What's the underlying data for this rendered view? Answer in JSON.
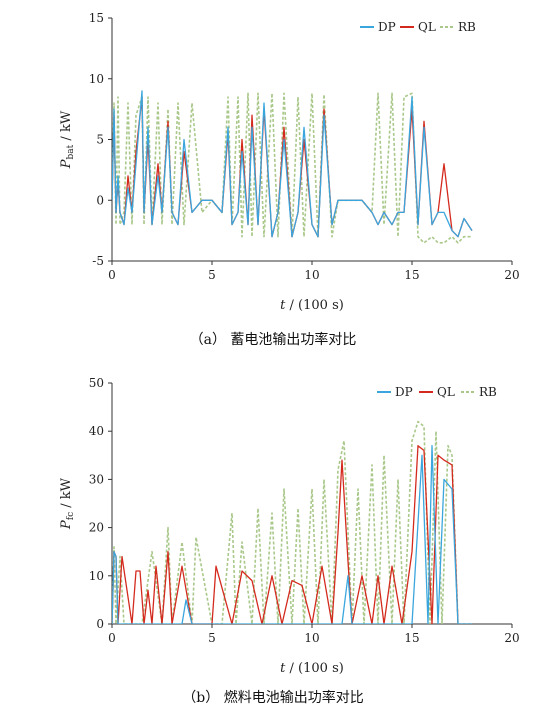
{
  "colors": {
    "DP": "#3aa6dd",
    "QL": "#d42a1e",
    "RB": "#a9c88a"
  },
  "chart_data": [
    {
      "type": "line",
      "caption": "（a） 蓄电池输出功率对比",
      "ylabel_main": "P",
      "ylabel_sub": "bat",
      "ylabel_unit": " / kW",
      "xlabel_main": "t",
      "xlabel_unit": " / (100 s)",
      "xlim": [
        0,
        20
      ],
      "ylim": [
        -5,
        15
      ],
      "xticks": [
        "0",
        "5",
        "10",
        "15",
        "20"
      ],
      "yticks": [
        "-5",
        "0",
        "5",
        "10",
        "15"
      ],
      "legend_position": "top-right",
      "series": [
        {
          "name": "DP",
          "style": "solid",
          "x": [
            0.0,
            0.1,
            0.2,
            0.3,
            0.4,
            0.6,
            0.8,
            1.0,
            1.2,
            1.5,
            1.6,
            1.8,
            2.0,
            2.3,
            2.5,
            2.8,
            3.0,
            3.3,
            3.6,
            4.0,
            4.5,
            5.0,
            5.5,
            5.8,
            6.0,
            6.3,
            6.5,
            6.8,
            7.0,
            7.3,
            7.6,
            8.0,
            8.3,
            8.6,
            9.0,
            9.3,
            9.6,
            10.0,
            10.3,
            10.6,
            11.0,
            11.3,
            11.6,
            12.0,
            12.5,
            13.0,
            13.3,
            13.6,
            14.0,
            14.3,
            14.6,
            15.0,
            15.3,
            15.6,
            16.0,
            16.3,
            16.6,
            17.0,
            17.3,
            17.6,
            18.0
          ],
          "y": [
            0,
            7.5,
            -1,
            2,
            -1,
            -2,
            1,
            -1,
            3,
            9,
            -1,
            6,
            -2,
            2,
            -1,
            6,
            -1,
            -2,
            5,
            -1,
            0,
            0,
            -1,
            6,
            -2,
            -1,
            4,
            -2,
            6,
            -2,
            8,
            -3,
            -1,
            5,
            -3,
            -1,
            6,
            -2,
            -3,
            7,
            -2,
            0,
            0,
            0,
            0,
            -1,
            -2,
            -1,
            -2,
            -1,
            -1,
            8.5,
            -2,
            6,
            -2,
            -1,
            -1,
            -2.5,
            -3,
            -1.5,
            -2.5
          ]
        },
        {
          "name": "QL",
          "style": "solid",
          "x": [
            0.0,
            0.1,
            0.2,
            0.3,
            0.4,
            0.6,
            0.8,
            1.0,
            1.2,
            1.5,
            1.6,
            1.8,
            2.0,
            2.3,
            2.5,
            2.8,
            3.0,
            3.3,
            3.6,
            4.0,
            4.5,
            5.0,
            5.5,
            5.8,
            6.0,
            6.3,
            6.5,
            6.8,
            7.0,
            7.3,
            7.6,
            8.0,
            8.3,
            8.6,
            9.0,
            9.3,
            9.6,
            10.0,
            10.3,
            10.6,
            11.0,
            11.3,
            11.6,
            12.0,
            12.5,
            13.0,
            13.3,
            13.6,
            14.0,
            14.3,
            14.6,
            15.0,
            15.3,
            15.6,
            16.0,
            16.3,
            16.6,
            17.0,
            17.3,
            17.6,
            18.0
          ],
          "y": [
            0,
            7,
            -1,
            1.5,
            -1,
            -2,
            2,
            -1,
            4,
            8.5,
            -1,
            5,
            -2,
            3,
            -1,
            6.5,
            -1,
            -2,
            4,
            -1,
            0,
            0,
            -1,
            5.5,
            -2,
            -1,
            5,
            -2,
            7,
            -2,
            7.5,
            -3,
            -1,
            6,
            -3,
            -1,
            5,
            -2,
            -3,
            7.5,
            -2,
            0,
            0,
            0,
            0,
            -1,
            -2,
            -1,
            -2,
            -1,
            -1,
            7.5,
            -2,
            6.5,
            -2,
            -1,
            3,
            -2.5,
            -3,
            -1.5,
            -2.5
          ]
        },
        {
          "name": "RB",
          "style": "dashed",
          "x": [
            0.0,
            0.1,
            0.2,
            0.3,
            0.4,
            0.6,
            0.8,
            1.0,
            1.2,
            1.5,
            1.6,
            1.8,
            2.0,
            2.3,
            2.5,
            2.8,
            3.0,
            3.3,
            3.6,
            4.0,
            4.5,
            5.0,
            5.5,
            5.8,
            6.0,
            6.3,
            6.5,
            6.8,
            7.0,
            7.3,
            7.6,
            8.0,
            8.3,
            8.6,
            9.0,
            9.3,
            9.6,
            10.0,
            10.3,
            10.6,
            11.0,
            11.3,
            11.6,
            12.0,
            12.5,
            13.0,
            13.3,
            13.6,
            14.0,
            14.3,
            14.6,
            15.0,
            15.3,
            15.6,
            16.0,
            16.3,
            16.6,
            17.0,
            17.3,
            17.6,
            18.0
          ],
          "y": [
            0,
            8,
            -2,
            8.5,
            -2,
            -1,
            8,
            -2,
            7,
            8.5,
            -2,
            8.5,
            -2,
            8,
            -2,
            7.5,
            -2,
            8,
            -2,
            8,
            -1,
            0,
            -1,
            8.5,
            -2,
            8.5,
            -3,
            8.8,
            -3,
            8.8,
            -3,
            8.8,
            -3,
            8.8,
            -3,
            8.5,
            -3,
            8.8,
            -3,
            8.7,
            -3,
            0,
            0,
            0,
            0,
            -1,
            8.8,
            -2,
            8.8,
            -3,
            8.5,
            8.8,
            -3,
            -3.5,
            -3,
            -3.5,
            -3.5,
            -3,
            -3.5,
            -3,
            -3
          ]
        }
      ]
    },
    {
      "type": "line",
      "caption": "（b） 燃料电池输出功率对比",
      "ylabel_main": "P",
      "ylabel_sub": "fc",
      "ylabel_unit": " / kW",
      "xlabel_main": "t",
      "xlabel_unit": " / (100 s)",
      "xlim": [
        0,
        20
      ],
      "ylim": [
        0,
        50
      ],
      "xticks": [
        "0",
        "5",
        "10",
        "15",
        "20"
      ],
      "yticks": [
        "0",
        "10",
        "20",
        "30",
        "40",
        "50"
      ],
      "legend_position": "top-right",
      "series": [
        {
          "name": "DP",
          "style": "solid",
          "x": [
            0.0,
            0.1,
            0.2,
            0.3,
            0.5,
            1.0,
            1.5,
            2.0,
            2.5,
            3.0,
            3.5,
            3.7,
            4.0,
            5.0,
            6.0,
            6.5,
            7.0,
            7.5,
            8.0,
            8.5,
            9.0,
            9.5,
            10.0,
            10.5,
            11.0,
            11.5,
            11.8,
            12.0,
            12.5,
            13.0,
            13.5,
            14.0,
            14.5,
            15.0,
            15.5,
            15.8,
            16.0,
            16.3,
            16.6,
            17.0,
            17.3,
            17.6,
            18.0
          ],
          "y": [
            0,
            15,
            14,
            0,
            0,
            0,
            0,
            0,
            0,
            0,
            0,
            5,
            0,
            0,
            0,
            0,
            0,
            0,
            0,
            0,
            0,
            0,
            0,
            0,
            0,
            0,
            10,
            0,
            0,
            0,
            0,
            0,
            0,
            0,
            35,
            0,
            37,
            0,
            30,
            28,
            0,
            0,
            0
          ]
        },
        {
          "name": "QL",
          "style": "solid",
          "x": [
            0.0,
            0.1,
            0.2,
            0.3,
            0.5,
            1.0,
            1.2,
            1.4,
            1.6,
            1.8,
            2.0,
            2.2,
            2.5,
            2.8,
            3.0,
            3.5,
            4.0,
            5.0,
            5.2,
            6.0,
            6.5,
            7.0,
            7.5,
            8.0,
            8.5,
            9.0,
            9.5,
            10.0,
            10.5,
            11.0,
            11.3,
            11.5,
            11.8,
            12.0,
            12.5,
            13.0,
            13.3,
            13.6,
            14.0,
            14.5,
            15.0,
            15.3,
            15.6,
            16.0,
            16.3,
            16.6,
            17.0,
            17.3,
            17.6,
            18.0
          ],
          "y": [
            0,
            15,
            14,
            0,
            14,
            0,
            11,
            11,
            0,
            7,
            0,
            12,
            0,
            15,
            0,
            12,
            0,
            0,
            12,
            0,
            11,
            9,
            0,
            10,
            0,
            9,
            8,
            0,
            12,
            0,
            19,
            34,
            13,
            0,
            10,
            0,
            10,
            0,
            12,
            0,
            15,
            37,
            36,
            0,
            35,
            34,
            33,
            0,
            0,
            0
          ]
        },
        {
          "name": "RB",
          "style": "dashed",
          "x": [
            0.0,
            0.1,
            0.2,
            0.4,
            0.6,
            1.0,
            1.5,
            2.0,
            2.5,
            2.8,
            3.0,
            3.5,
            4.0,
            4.2,
            5.0,
            5.5,
            6.0,
            6.2,
            6.5,
            7.0,
            7.3,
            7.6,
            8.0,
            8.3,
            8.6,
            9.0,
            9.3,
            9.6,
            10.0,
            10.3,
            10.6,
            11.0,
            11.3,
            11.6,
            12.0,
            12.3,
            12.6,
            13.0,
            13.3,
            13.6,
            14.0,
            14.3,
            14.6,
            15.0,
            15.3,
            15.6,
            15.9,
            16.2,
            16.5,
            16.8,
            17.0,
            17.3,
            17.6,
            18.0
          ],
          "y": [
            0,
            16,
            0,
            14,
            0,
            0,
            0,
            15,
            0,
            20,
            0,
            17,
            0,
            18,
            0,
            0,
            23,
            0,
            17,
            0,
            24,
            0,
            23,
            0,
            28,
            0,
            24,
            0,
            28,
            0,
            30,
            0,
            32,
            38,
            0,
            28,
            0,
            33,
            0,
            35,
            0,
            30,
            0,
            38,
            42,
            41,
            0,
            40,
            0,
            37,
            35,
            0,
            0,
            0
          ]
        }
      ]
    }
  ]
}
